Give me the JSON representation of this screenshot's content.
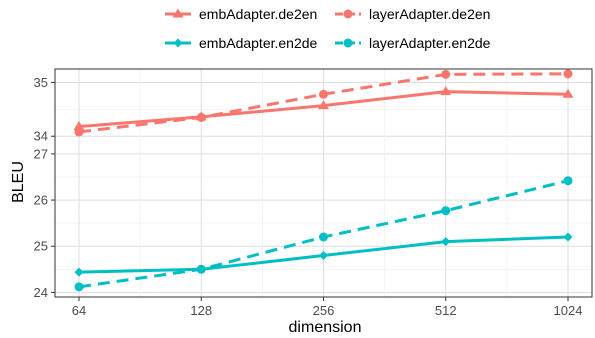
{
  "chart_data": {
    "type": "line",
    "xlabel": "dimension",
    "ylabel": "BLEU",
    "x": [
      64,
      128,
      256,
      512,
      1024
    ],
    "x_scale": "log2",
    "grid": true,
    "legend_position": "top",
    "panels": [
      {
        "ylim": [
          33.8,
          35.25
        ],
        "yticks": [
          34,
          35
        ],
        "series": [
          {
            "name": "embAdapter.de2en",
            "color": "#F8766D",
            "dash": "solid",
            "marker": "triangle",
            "values": [
              34.18,
              34.36,
              34.57,
              34.83,
              34.78
            ]
          },
          {
            "name": "layerAdapter.de2en",
            "color": "#F8766D",
            "dash": "dashed",
            "marker": "circle",
            "values": [
              34.08,
              34.35,
              34.78,
              35.15,
              35.16
            ]
          }
        ]
      },
      {
        "ylim": [
          23.9,
          27.15
        ],
        "yticks": [
          24,
          25,
          26,
          27
        ],
        "series": [
          {
            "name": "embAdapter.en2de",
            "color": "#00BFC4",
            "dash": "solid",
            "marker": "diamond",
            "values": [
              24.44,
              24.5,
              24.8,
              25.1,
              25.2
            ]
          },
          {
            "name": "layerAdapter.en2de",
            "color": "#00BFC4",
            "dash": "dashed",
            "marker": "circle",
            "values": [
              24.12,
              24.5,
              25.2,
              25.77,
              26.42
            ]
          }
        ]
      }
    ]
  }
}
